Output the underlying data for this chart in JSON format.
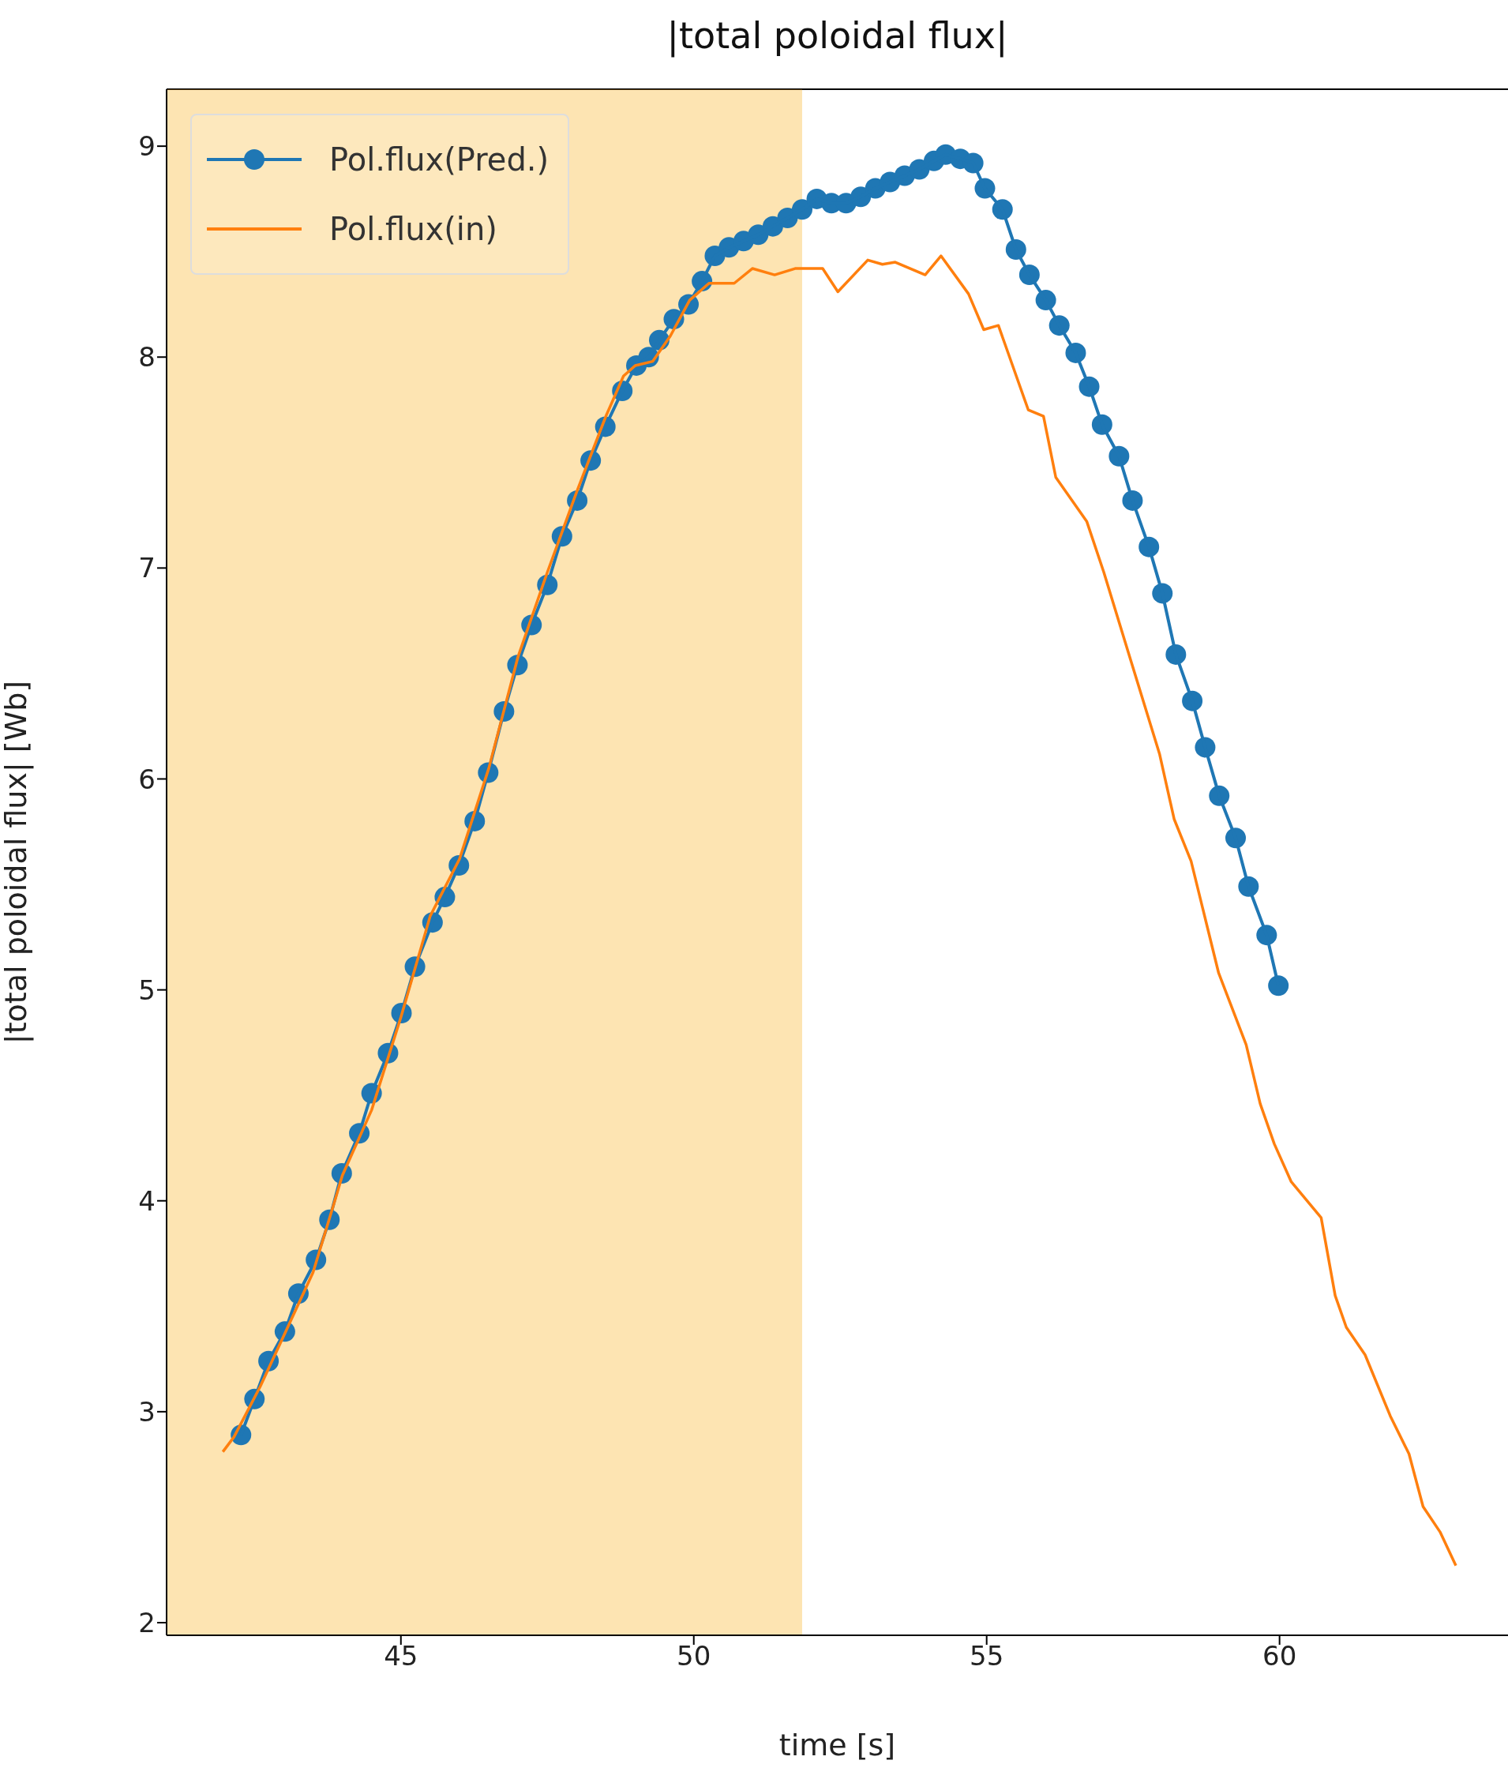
{
  "chart_data": {
    "type": "line",
    "title": "|total poloidal flux|",
    "xlabel": "time [s]",
    "ylabel": "|total poloidal flux| [Wb]",
    "xlim": [
      41,
      63.9
    ],
    "xticks": [
      45,
      50,
      55,
      60
    ],
    "ylim": [
      1.94,
      9.27
    ],
    "yticks": [
      2,
      3,
      4,
      5,
      6,
      7,
      8,
      9
    ],
    "legend": "top left",
    "grid": false,
    "bands": [
      {
        "axis": "x",
        "from": 41,
        "to": 51.85,
        "color": "#f7a700"
      }
    ],
    "series": [
      {
        "name": "Pol.flux(Pred.)",
        "color": "#1f77b4",
        "marker": "circle",
        "x": [
          42.27,
          42.5,
          42.74,
          43.02,
          43.25,
          43.55,
          43.78,
          43.99,
          44.29,
          44.5,
          44.78,
          45.01,
          45.24,
          45.54,
          45.75,
          45.99,
          46.26,
          46.49,
          46.76,
          46.99,
          47.23,
          47.5,
          47.75,
          48.01,
          48.24,
          48.49,
          48.78,
          49.02,
          49.23,
          49.41,
          49.66,
          49.91,
          50.14,
          50.36,
          50.6,
          50.85,
          51.1,
          51.35,
          51.6,
          51.85,
          52.1,
          52.35,
          52.6,
          52.85,
          53.1,
          53.35,
          53.6,
          53.85,
          54.1,
          54.3,
          54.55,
          54.77,
          54.97,
          55.27,
          55.5,
          55.73,
          56.01,
          56.24,
          56.52,
          56.75,
          56.97,
          57.26,
          57.49,
          57.77,
          58.0,
          58.23,
          58.51,
          58.73,
          58.97,
          59.25,
          59.47,
          59.78,
          59.98
        ],
        "values": [
          2.89,
          3.06,
          3.24,
          3.38,
          3.56,
          3.72,
          3.91,
          4.13,
          4.32,
          4.51,
          4.7,
          4.89,
          5.11,
          5.32,
          5.44,
          5.59,
          5.8,
          6.03,
          6.32,
          6.54,
          6.73,
          6.92,
          7.15,
          7.32,
          7.51,
          7.67,
          7.84,
          7.96,
          8.0,
          8.08,
          8.18,
          8.25,
          8.36,
          8.48,
          8.52,
          8.55,
          8.58,
          8.62,
          8.66,
          8.7,
          8.75,
          8.73,
          8.73,
          8.76,
          8.8,
          8.83,
          8.86,
          8.89,
          8.93,
          8.96,
          8.94,
          8.92,
          8.8,
          8.7,
          8.51,
          8.39,
          8.27,
          8.15,
          8.02,
          7.86,
          7.68,
          7.53,
          7.32,
          7.1,
          6.88,
          6.59,
          6.37,
          6.15,
          5.92,
          5.72,
          5.49,
          5.26,
          5.02
        ]
      },
      {
        "name": "Pol.flux(in)",
        "color": "#ff7f0e",
        "marker": "none",
        "x": [
          41.96,
          42.15,
          42.6,
          43.0,
          43.5,
          43.85,
          44.0,
          44.5,
          45.0,
          45.5,
          46.0,
          46.5,
          47.0,
          47.5,
          48.0,
          48.5,
          48.8,
          49.0,
          49.3,
          49.6,
          49.93,
          50.26,
          50.69,
          51.0,
          51.38,
          51.73,
          52.2,
          52.46,
          52.97,
          53.22,
          53.44,
          53.95,
          54.22,
          54.69,
          54.95,
          55.2,
          55.71,
          55.97,
          56.18,
          56.71,
          57.0,
          57.44,
          57.95,
          58.2,
          58.49,
          58.96,
          59.43,
          59.67,
          59.91,
          60.2,
          60.71,
          60.95,
          61.14,
          61.46,
          61.89,
          62.21,
          62.45,
          62.74,
          63.01
        ],
        "values": [
          2.81,
          2.88,
          3.12,
          3.36,
          3.66,
          3.98,
          4.12,
          4.43,
          4.87,
          5.35,
          5.62,
          6.05,
          6.58,
          6.98,
          7.36,
          7.72,
          7.91,
          7.96,
          7.98,
          8.1,
          8.27,
          8.35,
          8.35,
          8.42,
          8.39,
          8.42,
          8.42,
          8.31,
          8.46,
          8.44,
          8.45,
          8.39,
          8.48,
          8.3,
          8.13,
          8.15,
          7.75,
          7.72,
          7.43,
          7.22,
          6.98,
          6.58,
          6.12,
          5.81,
          5.61,
          5.08,
          4.74,
          4.46,
          4.27,
          4.09,
          3.92,
          3.55,
          3.4,
          3.27,
          2.98,
          2.8,
          2.55,
          2.43,
          2.27
        ]
      }
    ]
  }
}
